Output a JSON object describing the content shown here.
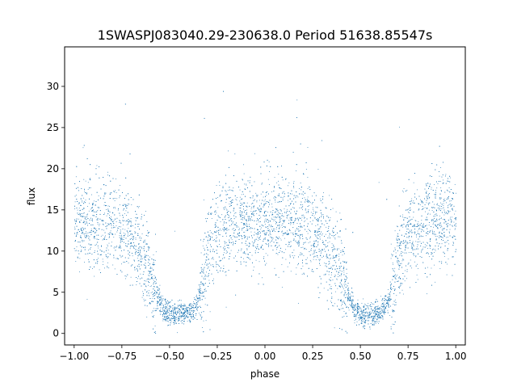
{
  "chart_data": {
    "type": "scatter",
    "title": "1SWASPJ083040.29-230638.0 Period 51638.85547s",
    "xlabel": "phase",
    "ylabel": "flux",
    "xlim": [
      -1.05,
      1.05
    ],
    "ylim": [
      -1.4,
      34.8
    ],
    "x_ticks": [
      -1.0,
      -0.75,
      -0.5,
      -0.25,
      0.0,
      0.25,
      0.5,
      0.75,
      1.0
    ],
    "x_tick_labels": [
      "−1.00",
      "−0.75",
      "−0.50",
      "−0.25",
      "0.00",
      "0.25",
      "0.50",
      "0.75",
      "1.00"
    ],
    "y_ticks": [
      0,
      5,
      10,
      15,
      20,
      25,
      30
    ],
    "y_tick_labels": [
      "0",
      "5",
      "10",
      "15",
      "20",
      "25",
      "30"
    ],
    "grid": false,
    "legend": "none",
    "point_color": "#1f77b4",
    "series": [
      {
        "light_curve_profile": {
          "phase": [
            -1.0,
            -0.9,
            -0.8,
            -0.7,
            -0.62,
            -0.57,
            -0.53,
            -0.5,
            -0.45,
            -0.4,
            -0.35,
            -0.3,
            -0.25,
            -0.2,
            -0.1,
            0.0,
            0.1,
            0.2,
            0.3,
            0.38,
            0.43,
            0.47,
            0.5,
            0.55,
            0.6,
            0.65,
            0.7,
            0.75,
            0.8,
            0.9,
            1.0
          ],
          "flux": [
            13.5,
            13.5,
            13.0,
            12.0,
            8.0,
            5.0,
            2.8,
            2.4,
            2.4,
            2.6,
            4.0,
            9.5,
            12.0,
            12.8,
            13.5,
            14.0,
            13.5,
            13.0,
            12.0,
            8.0,
            5.0,
            2.8,
            2.4,
            2.4,
            2.6,
            4.0,
            9.5,
            12.0,
            12.8,
            13.5,
            13.5
          ]
        },
        "scatter_sigma_out_of_eclipse": 2.8,
        "scatter_sigma_in_eclipse": 0.7,
        "n_points": 9000
      }
    ]
  }
}
